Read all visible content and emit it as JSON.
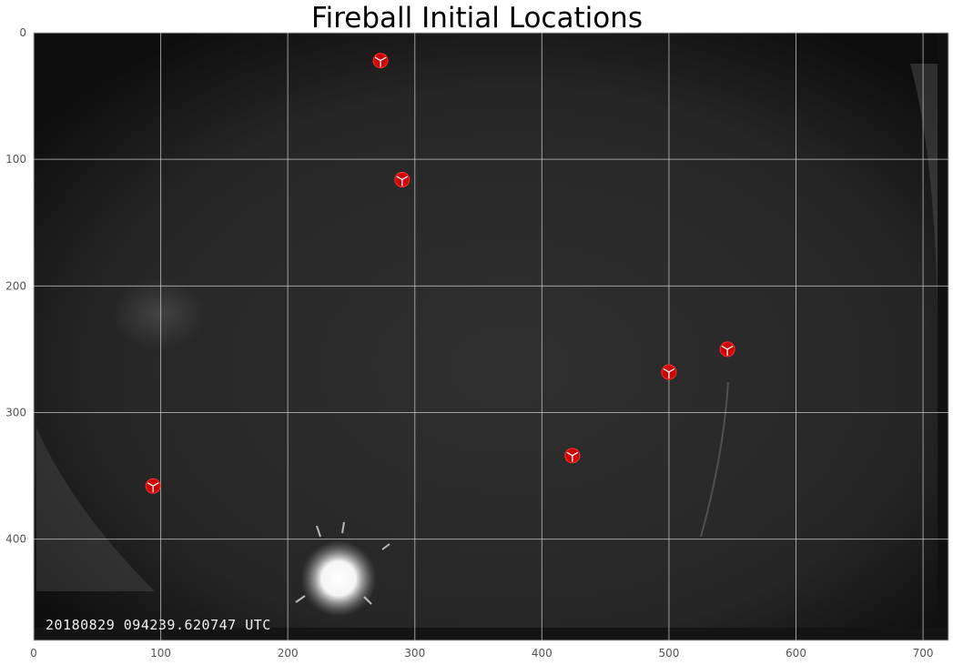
{
  "chart_data": {
    "type": "scatter",
    "title": "Fireball Initial Locations",
    "xlabel": "",
    "ylabel": "",
    "xlim": [
      0,
      720
    ],
    "ylim": [
      480,
      0
    ],
    "y_inverted": true,
    "grid": true,
    "x_ticks": [
      0,
      100,
      200,
      300,
      400,
      500,
      600,
      700
    ],
    "y_ticks": [
      0,
      100,
      200,
      300,
      400
    ],
    "background": "grayscale all-sky camera frame",
    "timestamp_overlay": "20180829 094239.620747 UTC",
    "marker_color": "#cc0000",
    "marker_shape": "red circle with white tri-spoke",
    "points": [
      {
        "x": 273,
        "y": 22
      },
      {
        "x": 290,
        "y": 116
      },
      {
        "x": 546,
        "y": 250
      },
      {
        "x": 500,
        "y": 268
      },
      {
        "x": 424,
        "y": 334
      },
      {
        "x": 94,
        "y": 358
      }
    ]
  }
}
